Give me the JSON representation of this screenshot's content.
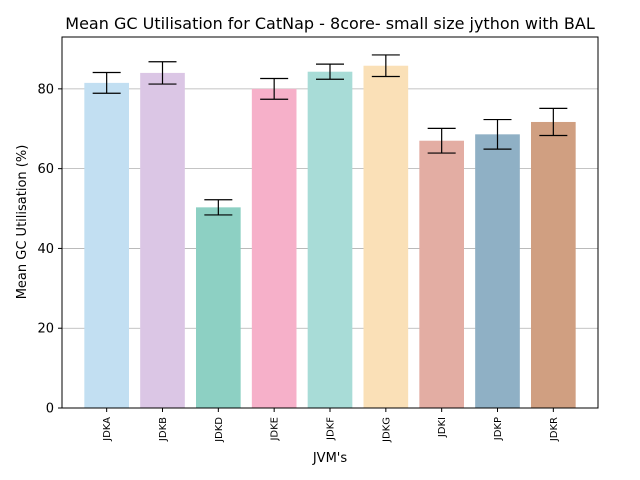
{
  "chart_data": {
    "type": "bar",
    "title": "Mean GC Utilisation for CatNap - 8core- small size jython with BAL",
    "xlabel": "JVM's",
    "ylabel": "Mean GC Utilisation (%)",
    "ylim": [
      0,
      93
    ],
    "yticks": [
      0,
      20,
      40,
      60,
      80
    ],
    "grid": "y",
    "categories": [
      "JDKA",
      "JDKB",
      "JDKD",
      "JDKE",
      "JDKF",
      "JDKG",
      "JDKI",
      "JDKP",
      "JDKR"
    ],
    "values": [
      81.5,
      84.0,
      50.3,
      80.0,
      84.3,
      85.8,
      67.0,
      68.6,
      71.7
    ],
    "errors": [
      2.6,
      2.8,
      1.9,
      2.6,
      1.9,
      2.7,
      3.1,
      3.7,
      3.4
    ],
    "colors": [
      "#c2dff2",
      "#dbc6e5",
      "#8dd0c3",
      "#f6b0c9",
      "#a8dcd7",
      "#fae0b7",
      "#e3ada3",
      "#8fb0c5",
      "#d09f81"
    ]
  }
}
